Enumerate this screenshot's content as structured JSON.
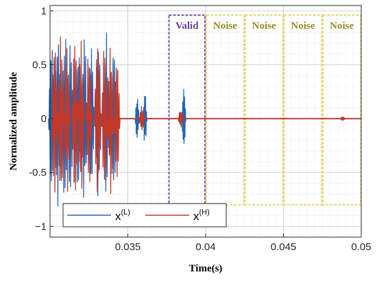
{
  "chart_data": {
    "type": "line",
    "xlabel": "Time(s)",
    "ylabel": "Normalized amplitude",
    "xlim": [
      0.03,
      0.05
    ],
    "ylim": [
      -1.1,
      1.05
    ],
    "x_ticks": [
      {
        "value": 0.035,
        "label": "0.035"
      },
      {
        "value": 0.04,
        "label": "0.04"
      },
      {
        "value": 0.045,
        "label": "0.045"
      },
      {
        "value": 0.05,
        "label": "0.05"
      }
    ],
    "y_ticks": [
      {
        "value": 1,
        "label": "1"
      },
      {
        "value": 0.5,
        "label": "0.5"
      },
      {
        "value": 0,
        "label": "0"
      },
      {
        "value": -0.5,
        "label": "-0.5"
      },
      {
        "value": -1,
        "label": "−1"
      }
    ],
    "grid": true,
    "legend": {
      "placement": "bottom-left",
      "entries": [
        {
          "base": "x",
          "sup": "(L)",
          "color": "#2166b8"
        },
        {
          "base": "x",
          "sup": "(H)",
          "color": "#c0392b"
        }
      ]
    },
    "series": [
      {
        "color": "#2166b8",
        "bursts": [
          {
            "x": 0.0301,
            "amp": 0.75
          },
          {
            "x": 0.0305,
            "amp": 0.85
          },
          {
            "x": 0.03095,
            "amp": 0.82
          },
          {
            "x": 0.0313,
            "amp": 0.78
          },
          {
            "x": 0.0318,
            "amp": 0.7
          },
          {
            "x": 0.0322,
            "amp": 0.8
          },
          {
            "x": 0.03265,
            "amp": 0.72
          },
          {
            "x": 0.0331,
            "amp": 0.76
          },
          {
            "x": 0.0336,
            "amp": 0.82
          },
          {
            "x": 0.0341,
            "amp": 0.7
          },
          {
            "x": 0.0356,
            "amp": 0.2
          },
          {
            "x": 0.0361,
            "amp": 0.24
          },
          {
            "x": 0.0386,
            "amp": 0.3
          }
        ]
      },
      {
        "color": "#c0392b",
        "bursts": [
          {
            "x": 0.0303,
            "amp": 0.78
          },
          {
            "x": 0.0307,
            "amp": 0.8
          },
          {
            "x": 0.0311,
            "amp": 0.72
          },
          {
            "x": 0.0316,
            "amp": 0.82
          },
          {
            "x": 0.032,
            "amp": 0.76
          },
          {
            "x": 0.0325,
            "amp": 0.66
          },
          {
            "x": 0.03305,
            "amp": 0.78
          },
          {
            "x": 0.0335,
            "amp": 0.72
          },
          {
            "x": 0.0339,
            "amp": 0.74
          },
          {
            "x": 0.0343,
            "amp": 0.62
          },
          {
            "x": 0.0359,
            "amp": 0.12
          },
          {
            "x": 0.0384,
            "amp": 0.08
          },
          {
            "x": 0.0488,
            "amp": 0.02
          }
        ]
      }
    ],
    "annotations": [
      {
        "label": "Valid",
        "x_start": 0.0376,
        "x_end": 0.04,
        "y_top": 0.96,
        "y_bottom": -0.8,
        "color": "#7b52ab",
        "label_color": "#6a3d9a"
      },
      {
        "label": "Noise",
        "x_start": 0.04,
        "x_end": 0.0425,
        "y_top": 0.96,
        "y_bottom": -0.8,
        "color": "#e8d87a",
        "label_color": "#9b8a22"
      },
      {
        "label": "Noise",
        "x_start": 0.0425,
        "x_end": 0.045,
        "y_top": 0.96,
        "y_bottom": -0.8,
        "color": "#e8d87a",
        "label_color": "#9b8a22"
      },
      {
        "label": "Noise",
        "x_start": 0.045,
        "x_end": 0.0475,
        "y_top": 0.96,
        "y_bottom": -0.8,
        "color": "#e8d87a",
        "label_color": "#9b8a22"
      },
      {
        "label": "Noise",
        "x_start": 0.0475,
        "x_end": 0.05,
        "y_top": 0.96,
        "y_bottom": -0.8,
        "color": "#e8d87a",
        "label_color": "#9b8a22"
      }
    ]
  }
}
